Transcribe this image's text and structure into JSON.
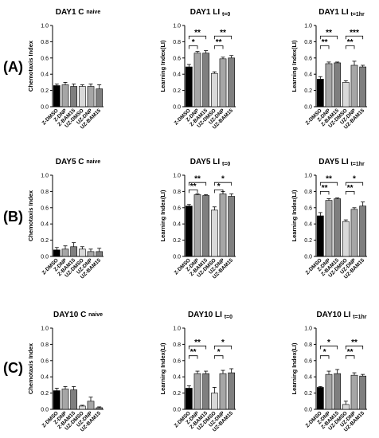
{
  "row_labels": [
    "(A)",
    "(B)",
    "(C)"
  ],
  "colors": {
    "black": "#000000",
    "gray_dark": "#7f7f7f",
    "gray_mid": "#a6a6a6",
    "gray_light": "#d9d9d9",
    "gray_lmid": "#bfbfbf"
  },
  "chart_data": [
    {
      "type": "bar",
      "title": "DAY1 C",
      "title_sub": "naive",
      "ylabel": "Chemotaxis Index",
      "ylim": [
        0,
        1.0
      ],
      "yticks": [
        "0.0",
        "0.2",
        "0.4",
        "0.6",
        "0.8",
        "1.0"
      ],
      "categories": [
        "Z-DMSO",
        "Z-DNP",
        "Z-BAM15",
        "UZ-DMSO",
        "UZ-DNP",
        "UZ-BAM15"
      ],
      "values": [
        0.26,
        0.27,
        0.25,
        0.25,
        0.25,
        0.22
      ],
      "errors": [
        0.02,
        0.03,
        0.03,
        0.02,
        0.03,
        0.05
      ],
      "fills": [
        "#000000",
        "#a6a6a6",
        "#7f7f7f",
        "#d9d9d9",
        "#a6a6a6",
        "#7f7f7f"
      ],
      "sig": []
    },
    {
      "type": "bar",
      "title": "DAY1 LI",
      "title_sub": "t=0",
      "ylabel": "Learning Index(LI)",
      "ylim": [
        0,
        1.0
      ],
      "yticks": [
        "0.0",
        "0.2",
        "0.4",
        "0.6",
        "0.8",
        "1.0"
      ],
      "categories": [
        "Z-DMSO",
        "Z-DNP",
        "Z-BAM15",
        "UZ-DMSO",
        "UZ-DNP",
        "UZ-BAM15"
      ],
      "values": [
        0.49,
        0.66,
        0.66,
        0.41,
        0.59,
        0.6
      ],
      "errors": [
        0.03,
        0.02,
        0.03,
        0.02,
        0.02,
        0.03
      ],
      "fills": [
        "#000000",
        "#a6a6a6",
        "#7f7f7f",
        "#d9d9d9",
        "#a6a6a6",
        "#7f7f7f"
      ],
      "sig": [
        {
          "from": 0,
          "to": 2,
          "label": "**",
          "y": 0.87
        },
        {
          "from": 0,
          "to": 1,
          "label": "*",
          "y": 0.75
        },
        {
          "from": 3,
          "to": 5,
          "label": "**",
          "y": 0.87
        },
        {
          "from": 3,
          "to": 4,
          "label": "**",
          "y": 0.75
        }
      ]
    },
    {
      "type": "bar",
      "title": "DAY1 LI",
      "title_sub": "t=1hr",
      "ylabel": "Learning Index(LI)",
      "ylim": [
        0,
        1.0
      ],
      "yticks": [
        "0.0",
        "0.2",
        "0.4",
        "0.6",
        "0.8",
        "1.0"
      ],
      "categories": [
        "Z-DMSO",
        "Z-DNP",
        "Z-BAM15",
        "UZ-DMSO",
        "UZ-DNP",
        "UZ-BAM15"
      ],
      "values": [
        0.34,
        0.53,
        0.54,
        0.3,
        0.51,
        0.49
      ],
      "errors": [
        0.03,
        0.02,
        0.01,
        0.02,
        0.05,
        0.02
      ],
      "fills": [
        "#000000",
        "#a6a6a6",
        "#7f7f7f",
        "#d9d9d9",
        "#a6a6a6",
        "#7f7f7f"
      ],
      "sig": [
        {
          "from": 0,
          "to": 2,
          "label": "**",
          "y": 0.87
        },
        {
          "from": 0,
          "to": 1,
          "label": "**",
          "y": 0.75
        },
        {
          "from": 3,
          "to": 5,
          "label": "***",
          "y": 0.87
        },
        {
          "from": 3,
          "to": 4,
          "label": "**",
          "y": 0.75
        }
      ]
    },
    {
      "type": "bar",
      "title": "DAY5 C",
      "title_sub": "naive",
      "ylabel": "Chemotaxis Index",
      "ylim": [
        0,
        1.0
      ],
      "yticks": [
        "0.0",
        "0.2",
        "0.4",
        "0.6",
        "0.8",
        "1.0"
      ],
      "categories": [
        "Z-DMSO",
        "Z-DNP",
        "Z-BAM15",
        "UZ-DMSO",
        "UZ-DNP",
        "UZ-BAM15"
      ],
      "values": [
        0.08,
        0.09,
        0.12,
        0.09,
        0.06,
        0.06
      ],
      "errors": [
        0.03,
        0.04,
        0.05,
        0.03,
        0.03,
        0.04
      ],
      "fills": [
        "#000000",
        "#a6a6a6",
        "#7f7f7f",
        "#d9d9d9",
        "#a6a6a6",
        "#7f7f7f"
      ],
      "sig": []
    },
    {
      "type": "bar",
      "title": "DAY5 LI",
      "title_sub": "t=0",
      "ylabel": "Learning Index(LI)",
      "ylim": [
        0,
        1.0
      ],
      "yticks": [
        "0.0",
        "0.2",
        "0.4",
        "0.6",
        "0.8",
        "1.0"
      ],
      "categories": [
        "Z-DMSO",
        "Z-DNP",
        "Z-BAM15",
        "UZ-DMSO",
        "UZ-DNP",
        "UZ-BAM15"
      ],
      "values": [
        0.62,
        0.76,
        0.75,
        0.57,
        0.77,
        0.74
      ],
      "errors": [
        0.02,
        0.01,
        0.01,
        0.04,
        0.03,
        0.03
      ],
      "fills": [
        "#000000",
        "#a6a6a6",
        "#7f7f7f",
        "#d9d9d9",
        "#a6a6a6",
        "#7f7f7f"
      ],
      "sig": [
        {
          "from": 0,
          "to": 2,
          "label": "**",
          "y": 0.91
        },
        {
          "from": 0,
          "to": 1,
          "label": "**",
          "y": 0.82
        },
        {
          "from": 3,
          "to": 5,
          "label": "*",
          "y": 0.91
        },
        {
          "from": 3,
          "to": 4,
          "label": "*",
          "y": 0.82
        }
      ]
    },
    {
      "type": "bar",
      "title": "DAY5 LI",
      "title_sub": "t=1hr",
      "ylabel": "Learning Index(LI)",
      "ylim": [
        0,
        1.0
      ],
      "yticks": [
        "0.0",
        "0.2",
        "0.4",
        "0.6",
        "0.8",
        "1.0"
      ],
      "categories": [
        "Z-DMSO",
        "Z-DNP",
        "Z-BAM15",
        "UZ-DMSO",
        "UZ-DNP",
        "UZ-BAM15"
      ],
      "values": [
        0.5,
        0.69,
        0.71,
        0.43,
        0.58,
        0.62
      ],
      "errors": [
        0.04,
        0.02,
        0.01,
        0.02,
        0.02,
        0.05
      ],
      "fills": [
        "#000000",
        "#a6a6a6",
        "#7f7f7f",
        "#d9d9d9",
        "#a6a6a6",
        "#7f7f7f"
      ],
      "sig": [
        {
          "from": 0,
          "to": 2,
          "label": "**",
          "y": 0.91
        },
        {
          "from": 0,
          "to": 1,
          "label": "**",
          "y": 0.8
        },
        {
          "from": 3,
          "to": 5,
          "label": "*",
          "y": 0.91
        },
        {
          "from": 3,
          "to": 4,
          "label": "**",
          "y": 0.8
        }
      ]
    },
    {
      "type": "bar",
      "title": "DAY10 C",
      "title_sub": "naive",
      "ylabel": "Chemotaxis Index",
      "ylim": [
        0,
        1.0
      ],
      "yticks": [
        "0.0",
        "0.2",
        "0.4",
        "0.6",
        "0.8",
        "1.0"
      ],
      "categories": [
        "Z-DMSO",
        "Z-DNP",
        "Z-BAM15",
        "UZ-DMSO",
        "UZ-DNP",
        "UZ-BAM15"
      ],
      "values": [
        0.23,
        0.25,
        0.24,
        0.04,
        0.1,
        0.02
      ],
      "errors": [
        0.03,
        0.03,
        0.04,
        0.01,
        0.05,
        0.01
      ],
      "fills": [
        "#000000",
        "#a6a6a6",
        "#7f7f7f",
        "#d9d9d9",
        "#a6a6a6",
        "#7f7f7f"
      ],
      "sig": []
    },
    {
      "type": "bar",
      "title": "DAY10 LI",
      "title_sub": "t=0",
      "ylabel": "Learning Index(LI)",
      "ylim": [
        0,
        1.0
      ],
      "yticks": [
        "0.0",
        "0.2",
        "0.4",
        "0.6",
        "0.8",
        "1.0"
      ],
      "categories": [
        "Z-DMSO",
        "Z-DNP",
        "Z-BAM15",
        "UZ-DMSO",
        "UZ-DNP",
        "UZ-BAM15"
      ],
      "values": [
        0.26,
        0.44,
        0.44,
        0.2,
        0.44,
        0.45
      ],
      "errors": [
        0.03,
        0.03,
        0.03,
        0.07,
        0.04,
        0.05
      ],
      "fills": [
        "#000000",
        "#a6a6a6",
        "#7f7f7f",
        "#d9d9d9",
        "#a6a6a6",
        "#7f7f7f"
      ],
      "sig": [
        {
          "from": 0,
          "to": 2,
          "label": "**",
          "y": 0.78
        },
        {
          "from": 0,
          "to": 1,
          "label": "**",
          "y": 0.66
        },
        {
          "from": 3,
          "to": 5,
          "label": "*",
          "y": 0.78
        },
        {
          "from": 3,
          "to": 4,
          "label": "*",
          "y": 0.66
        }
      ]
    },
    {
      "type": "bar",
      "title": "DAY10 LI",
      "title_sub": "t=1hr",
      "ylabel": "Learning Index(LI)",
      "ylim": [
        0,
        1.0
      ],
      "yticks": [
        "0.0",
        "0.2",
        "0.4",
        "0.6",
        "0.8",
        "1.0"
      ],
      "categories": [
        "Z-DMSO",
        "Z-DNP",
        "Z-BAM15",
        "UZ-DMSO",
        "UZ-DNP",
        "UZ-BAM15"
      ],
      "values": [
        0.27,
        0.43,
        0.44,
        0.06,
        0.42,
        0.41
      ],
      "errors": [
        0.01,
        0.04,
        0.05,
        0.04,
        0.03,
        0.02
      ],
      "fills": [
        "#000000",
        "#a6a6a6",
        "#7f7f7f",
        "#d9d9d9",
        "#a6a6a6",
        "#7f7f7f"
      ],
      "sig": [
        {
          "from": 0,
          "to": 2,
          "label": "*",
          "y": 0.78
        },
        {
          "from": 0,
          "to": 1,
          "label": "*",
          "y": 0.66
        },
        {
          "from": 3,
          "to": 5,
          "label": "**",
          "y": 0.78
        },
        {
          "from": 3,
          "to": 4,
          "label": "**",
          "y": 0.66
        }
      ]
    }
  ]
}
